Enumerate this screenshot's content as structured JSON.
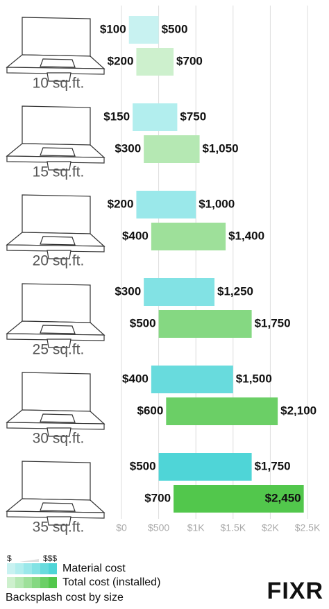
{
  "chart_data": {
    "type": "floating-bar",
    "categories": [
      "10 sq.ft.",
      "15 sq.ft.",
      "20 sq.ft.",
      "25 sq.ft.",
      "30 sq.ft.",
      "35 sq.ft."
    ],
    "series": [
      {
        "name": "Material cost",
        "colors": [
          "#c8f2f1",
          "#b2eeee",
          "#9ae8ea",
          "#82e2e4",
          "#68dbdd",
          "#4fd5d7"
        ],
        "values": [
          [
            100,
            500
          ],
          [
            150,
            750
          ],
          [
            200,
            1000
          ],
          [
            300,
            1250
          ],
          [
            400,
            1500
          ],
          [
            500,
            1750
          ]
        ],
        "value_labels": [
          [
            "$100",
            "$500"
          ],
          [
            "$150",
            "$750"
          ],
          [
            "$200",
            "$1,000"
          ],
          [
            "$300",
            "$1,250"
          ],
          [
            "$400",
            "$1,500"
          ],
          [
            "$500",
            "$1,750"
          ]
        ]
      },
      {
        "name": "Total cost (installed)",
        "colors": [
          "#cdf0cd",
          "#b5e8b3",
          "#9ee09a",
          "#85d882",
          "#6bcf66",
          "#52c74c"
        ],
        "values": [
          [
            200,
            700
          ],
          [
            300,
            1050
          ],
          [
            400,
            1400
          ],
          [
            500,
            1750
          ],
          [
            600,
            2100
          ],
          [
            700,
            2450
          ]
        ],
        "value_labels": [
          [
            "$200",
            "$700"
          ],
          [
            "$300",
            "$1,050"
          ],
          [
            "$400",
            "$1,400"
          ],
          [
            "$500",
            "$1,750"
          ],
          [
            "$600",
            "$2,100"
          ],
          [
            "$700",
            "$2,450"
          ]
        ]
      }
    ],
    "xlim": [
      0,
      2500
    ],
    "xticks": [
      {
        "value": 0,
        "label": "$0"
      },
      {
        "value": 500,
        "label": "$500"
      },
      {
        "value": 1000,
        "label": "$1K"
      },
      {
        "value": 1500,
        "label": "$1.5K"
      },
      {
        "value": 2000,
        "label": "$2K"
      },
      {
        "value": 2500,
        "label": "$2.5K"
      }
    ],
    "grid": true,
    "legend_scale": [
      "$",
      "$$$"
    ],
    "caption": "Backsplash cost by size",
    "logo": "FIXR"
  }
}
